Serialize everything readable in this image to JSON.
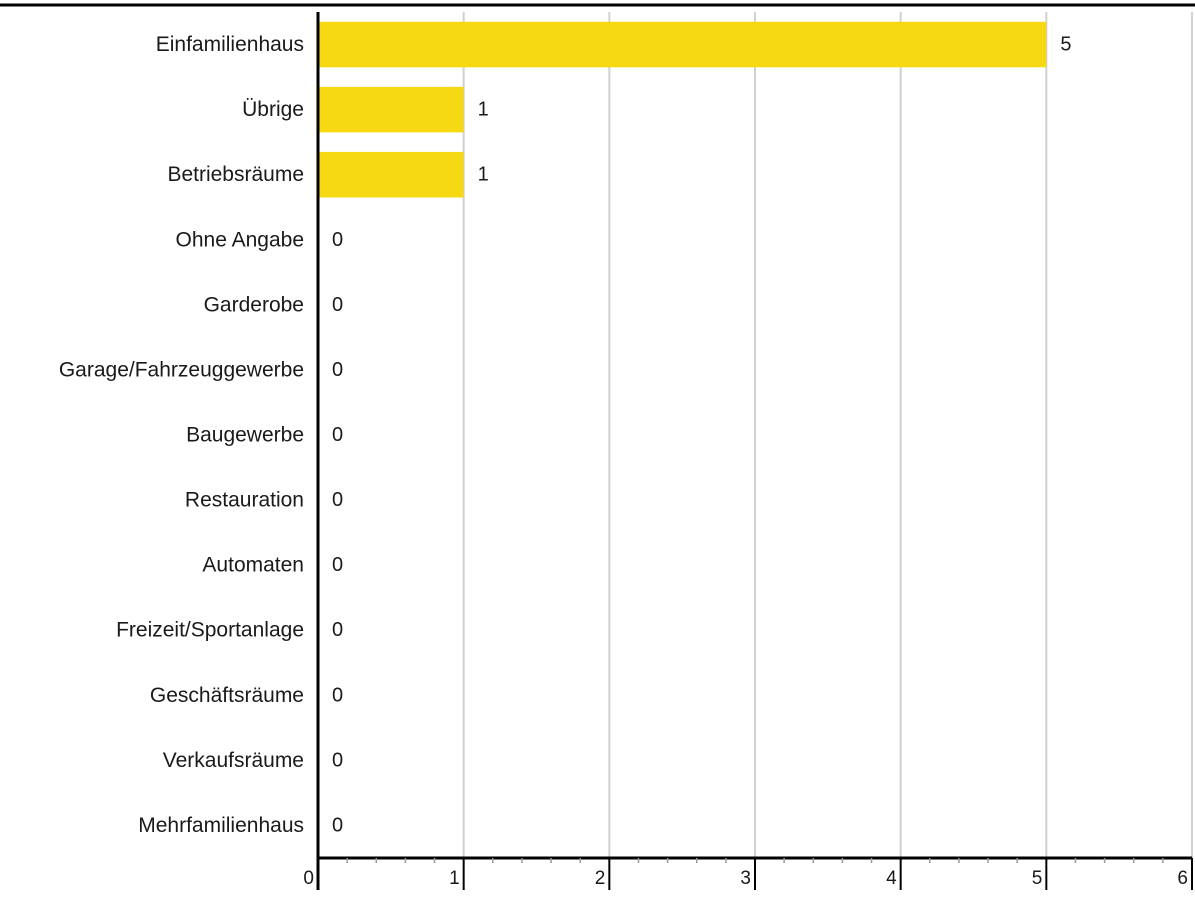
{
  "chart_data": {
    "type": "bar",
    "orientation": "horizontal",
    "categories": [
      "Einfamilienhaus",
      "Übrige",
      "Betriebsräume",
      "Ohne Angabe",
      "Garderobe",
      "Garage/Fahrzeuggewerbe",
      "Baugewerbe",
      "Restauration",
      "Automaten",
      "Freizeit/Sportanlage",
      "Geschäftsräume",
      "Verkaufsräume",
      "Mehrfamilienhaus"
    ],
    "values": [
      5,
      1,
      1,
      0,
      0,
      0,
      0,
      0,
      0,
      0,
      0,
      0,
      0
    ],
    "xlim": [
      0,
      6
    ],
    "xticks": [
      0,
      1,
      2,
      3,
      4,
      5,
      6
    ],
    "grid": true,
    "data_labels": true,
    "bar_color": "#f7d913",
    "grid_color": "#d0d0d0",
    "axis_color": "#000000"
  }
}
